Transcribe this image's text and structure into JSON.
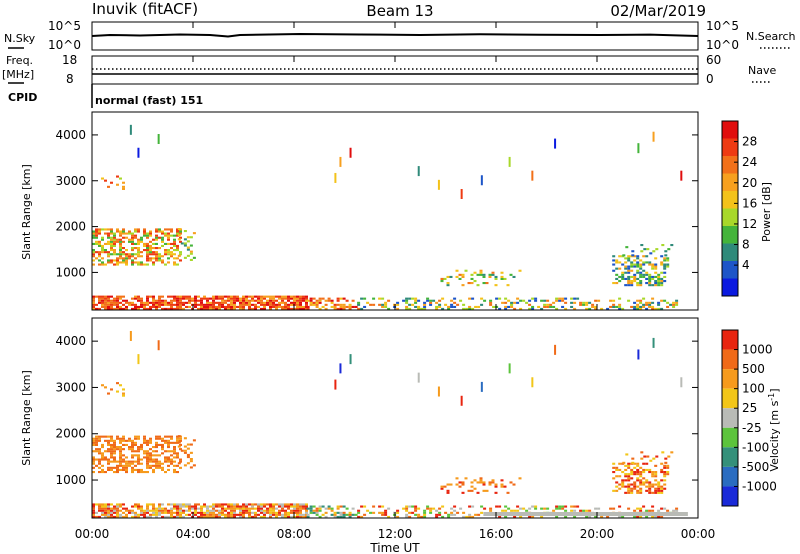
{
  "header": {
    "station": "Inuvik (fitACF)",
    "beam": "Beam 13",
    "date": "02/Mar/2019"
  },
  "panels": {
    "nsky": {
      "label": "N.Sky",
      "ticks": [
        "10^5",
        "10^0"
      ]
    },
    "nsearch": {
      "label": "N.Search",
      "ticks": [
        "10^5",
        "10^0"
      ]
    },
    "freq": {
      "label_top": "Freq.",
      "label_unit": "[MHz]",
      "ticks": [
        "18",
        "8"
      ]
    },
    "nave": {
      "label": "Nave",
      "ticks": [
        "60",
        "0"
      ]
    },
    "cpid": {
      "label": "CPID",
      "value": "normal (fast) 151"
    }
  },
  "chart_data": {
    "type": "heatmap",
    "x_axis": {
      "label": "Time UT",
      "ticks": [
        "00:00",
        "04:00",
        "08:00",
        "12:00",
        "16:00",
        "20:00",
        "00:00"
      ],
      "range_hours": [
        0,
        24
      ]
    },
    "y_axis": {
      "label": "Slant Range [km]",
      "ticks": [
        "1000",
        "2000",
        "3000",
        "4000"
      ],
      "range": [
        180,
        4500
      ]
    },
    "power_scale": {
      "label": "Power [dB]",
      "ticks": [
        "4",
        "8",
        "12",
        "16",
        "20",
        "24",
        "28"
      ],
      "colors": [
        "#0b1ae0",
        "#1d55c8",
        "#2f8a7a",
        "#44b43a",
        "#a8d82a",
        "#f3c21a",
        "#f7a01f",
        "#f27019",
        "#ee3a12",
        "#e00d0d"
      ]
    },
    "velocity_scale": {
      "label": "Velocity [m s",
      "label_sup": "-1",
      "label_end": "]",
      "ticks": [
        "1000",
        "500",
        "100",
        "25",
        "-25",
        "-100",
        "-500",
        "-1000"
      ],
      "colors": [
        "#1a2ad8",
        "#2a6cc0",
        "#34907a",
        "#5cc43c",
        "#b9bbb6",
        "#f2c618",
        "#f69a1c",
        "#f06a18",
        "#e8240f"
      ]
    }
  }
}
